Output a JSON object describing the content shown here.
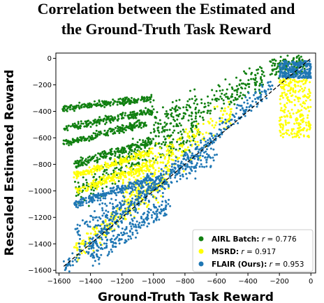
{
  "chart_data": {
    "type": "scatter",
    "title_lines": [
      "Correlation between the Estimated and",
      "the Ground-Truth Task Reward"
    ],
    "xlabel": "Ground-Truth Task Reward",
    "ylabel": "Rescaled Estimated Reward",
    "xlim": [
      -1620,
      30
    ],
    "ylim": [
      -1620,
      40
    ],
    "xticks": [
      -1600,
      -1400,
      -1200,
      -1000,
      -800,
      -600,
      -400,
      -200,
      0
    ],
    "xtick_labels": [
      "−1600",
      "−1400",
      "−1200",
      "−1000",
      "−800",
      "−600",
      "−400",
      "−200",
      "0"
    ],
    "yticks": [
      0,
      -200,
      -400,
      -600,
      -800,
      -1000,
      -1200,
      -1400,
      -1600
    ],
    "ytick_labels": [
      "0",
      "−200",
      "−400",
      "−600",
      "−800",
      "−1000",
      "−1200",
      "−1400",
      "−1600"
    ],
    "grid": false,
    "legend_position": "bottom-right",
    "reference_line": {
      "style": "dashed",
      "color": "#000000",
      "from": [
        -1570,
        -1570
      ],
      "to": [
        0,
        0
      ]
    },
    "series": [
      {
        "name": "AIRL Batch",
        "r_label": "r",
        "r_value": "= 0.776",
        "color": "#118011",
        "bands": [
          {
            "x_start": -1570,
            "x_end": -1000,
            "y_start": -380,
            "y_end": -300,
            "spread": 20
          },
          {
            "x_start": -1570,
            "x_end": -1000,
            "y_start": -520,
            "y_end": -400,
            "spread": 25
          },
          {
            "x_start": -1570,
            "x_end": -1050,
            "y_start": -640,
            "y_end": -490,
            "spread": 25
          },
          {
            "x_start": -1500,
            "x_end": -1000,
            "y_start": -800,
            "y_end": -620,
            "spread": 30
          },
          {
            "x_start": -1500,
            "x_end": -700,
            "y_start": -1000,
            "y_end": -500,
            "spread": 110
          },
          {
            "x_start": -1000,
            "x_end": -300,
            "y_start": -500,
            "y_end": -150,
            "spread": 100
          },
          {
            "x_start": -250,
            "x_end": -40,
            "y_start": -80,
            "y_end": -30,
            "spread": 70
          }
        ]
      },
      {
        "name": "MSRD",
        "r_label": "r",
        "r_value": "= 0.917",
        "color": "#ffff00",
        "bands": [
          {
            "x_start": -1500,
            "x_end": -1000,
            "y_start": -880,
            "y_end": -700,
            "spread": 25
          },
          {
            "x_start": -1500,
            "x_end": -1000,
            "y_start": -1000,
            "y_end": -800,
            "spread": 30
          },
          {
            "x_start": -1500,
            "x_end": -900,
            "y_start": -1450,
            "y_end": -900,
            "spread": 80
          },
          {
            "x_start": -1200,
            "x_end": -500,
            "y_start": -1000,
            "y_end": -400,
            "spread": 120
          },
          {
            "x_start": -200,
            "x_end": 0,
            "y_start": -600,
            "y_end": -150,
            "spread": 0
          }
        ]
      },
      {
        "name": "FLAIR (Ours)",
        "r_label": "r",
        "r_value": "= 0.953",
        "color": "#1f77b4",
        "bands": [
          {
            "x_start": -1570,
            "x_end": -250,
            "y_start": -1570,
            "y_end": -200,
            "spread": 60
          },
          {
            "x_start": -1500,
            "x_end": -1000,
            "y_start": -1100,
            "y_end": -900,
            "spread": 30
          },
          {
            "x_start": -1500,
            "x_end": -600,
            "y_start": -1300,
            "y_end": -700,
            "spread": 90
          },
          {
            "x_start": -1400,
            "x_end": -900,
            "y_start": -1500,
            "y_end": -1100,
            "spread": 70
          },
          {
            "x_start": -200,
            "x_end": 0,
            "y_start": -150,
            "y_end": -20,
            "spread": 0
          }
        ]
      }
    ]
  }
}
